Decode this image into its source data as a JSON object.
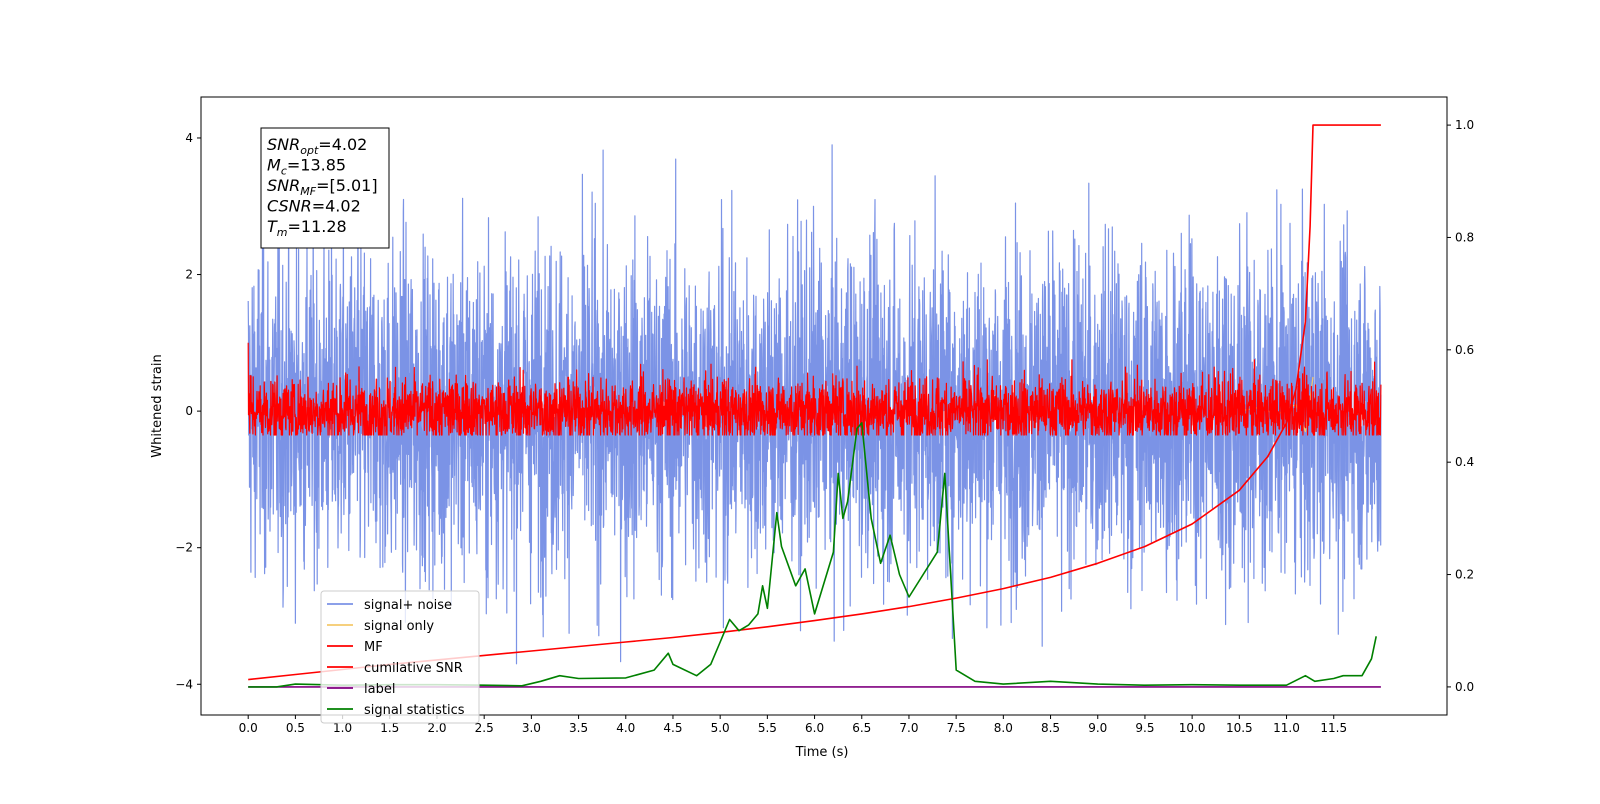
{
  "chart_data": {
    "type": "line",
    "xlabel": "Time (s)",
    "ylabel": "Whitened strain",
    "xlim": [
      -0.5,
      12.7
    ],
    "ylim": [
      -4.45,
      4.6
    ],
    "y2lim": [
      -0.05,
      1.05
    ],
    "x_ticks": [
      "0.0",
      "0.5",
      "1.0",
      "1.5",
      "2.0",
      "2.5",
      "3.0",
      "3.5",
      "4.0",
      "4.5",
      "5.0",
      "5.5",
      "6.0",
      "6.5",
      "7.0",
      "7.5",
      "8.0",
      "8.5",
      "9.0",
      "9.5",
      "10.0",
      "10.5",
      "11.0",
      "11.5"
    ],
    "y_ticks": [
      "−4",
      "−2",
      "0",
      "2",
      "4"
    ],
    "y2_ticks": [
      "0.0",
      "0.2",
      "0.4",
      "0.6",
      "0.8",
      "1.0"
    ],
    "annotation": [
      {
        "sym": "SNR",
        "sub": "opt",
        "val": "=4.02"
      },
      {
        "sym": "M",
        "sub": "c",
        "val": "=13.85"
      },
      {
        "sym": "SNR",
        "sub": "MF",
        "val": "=[5.01]"
      },
      {
        "sym": "CSNR",
        "sub": "",
        "val": "=4.02"
      },
      {
        "sym": "T",
        "sub": "m",
        "val": "=11.28"
      }
    ],
    "legend": {
      "placement": "lower-left",
      "entries": [
        {
          "name": "signal+ noise",
          "color": "#7b93e6"
        },
        {
          "name": "signal only",
          "color": "#f5c96b"
        },
        {
          "name": "MF",
          "color": "#ff0000"
        },
        {
          "name": "cumilative SNR",
          "color": "#ff0000"
        },
        {
          "name": "label",
          "color": "#800080"
        },
        {
          "name": "signal statistics",
          "color": "#008000"
        }
      ]
    },
    "series": [
      {
        "name": "signal+ noise",
        "axis": "left",
        "color": "#7b93e6",
        "x_range": [
          0.0,
          12.0
        ],
        "amplitude": 1.2,
        "peak_max": 4.1,
        "peak_min": -3.7
      },
      {
        "name": "signal only",
        "axis": "left",
        "color": "#f5c96b",
        "x": [
          10.5,
          10.7,
          10.9,
          11.1,
          11.2,
          11.28
        ],
        "y": [
          0.0,
          0.05,
          -0.05,
          0.1,
          -0.3,
          0.5
        ]
      },
      {
        "name": "MF",
        "axis": "left",
        "color": "#ff0000",
        "x_range": [
          0.0,
          12.0
        ],
        "amplitude": 0.25,
        "start_value": 1.0
      },
      {
        "name": "cumilative SNR",
        "axis": "right",
        "color": "#ff0000",
        "x": [
          0.0,
          0.5,
          1.0,
          1.5,
          2.0,
          2.5,
          3.0,
          3.5,
          4.0,
          4.5,
          5.0,
          5.5,
          6.0,
          6.5,
          7.0,
          7.5,
          8.0,
          8.5,
          9.0,
          9.5,
          10.0,
          10.5,
          10.8,
          11.0,
          11.1,
          11.2,
          11.25,
          11.28,
          12.0
        ],
        "y": [
          0.013,
          0.022,
          0.031,
          0.04,
          0.048,
          0.056,
          0.064,
          0.072,
          0.08,
          0.088,
          0.097,
          0.107,
          0.118,
          0.13,
          0.143,
          0.158,
          0.175,
          0.195,
          0.22,
          0.25,
          0.29,
          0.35,
          0.41,
          0.47,
          0.53,
          0.65,
          0.82,
          1.0,
          1.0
        ]
      },
      {
        "name": "label",
        "axis": "right",
        "color": "#800080",
        "x": [
          0.0,
          12.0
        ],
        "y": [
          0.0,
          0.0
        ]
      },
      {
        "name": "signal statistics",
        "axis": "right",
        "color": "#008000",
        "x": [
          0.0,
          0.3,
          0.5,
          1.0,
          1.5,
          2.0,
          2.5,
          2.9,
          3.1,
          3.3,
          3.5,
          4.0,
          4.3,
          4.45,
          4.5,
          4.75,
          4.9,
          5.0,
          5.1,
          5.2,
          5.3,
          5.4,
          5.45,
          5.5,
          5.6,
          5.65,
          5.8,
          5.9,
          6.0,
          6.2,
          6.25,
          6.3,
          6.35,
          6.45,
          6.5,
          6.6,
          6.7,
          6.8,
          6.9,
          7.0,
          7.3,
          7.38,
          7.5,
          7.7,
          8.0,
          8.5,
          9.0,
          9.5,
          10.0,
          10.5,
          11.0,
          11.2,
          11.3,
          11.5,
          11.6,
          11.8,
          11.9,
          11.95
        ],
        "y": [
          0.0,
          0.0,
          0.005,
          0.003,
          0.004,
          0.004,
          0.003,
          0.002,
          0.01,
          0.02,
          0.015,
          0.016,
          0.03,
          0.06,
          0.04,
          0.02,
          0.04,
          0.08,
          0.12,
          0.1,
          0.11,
          0.13,
          0.18,
          0.14,
          0.31,
          0.25,
          0.18,
          0.21,
          0.13,
          0.24,
          0.38,
          0.3,
          0.33,
          0.46,
          0.47,
          0.3,
          0.22,
          0.27,
          0.2,
          0.16,
          0.24,
          0.38,
          0.03,
          0.01,
          0.005,
          0.01,
          0.005,
          0.003,
          0.004,
          0.003,
          0.003,
          0.02,
          0.01,
          0.015,
          0.02,
          0.02,
          0.05,
          0.09
        ]
      }
    ]
  }
}
